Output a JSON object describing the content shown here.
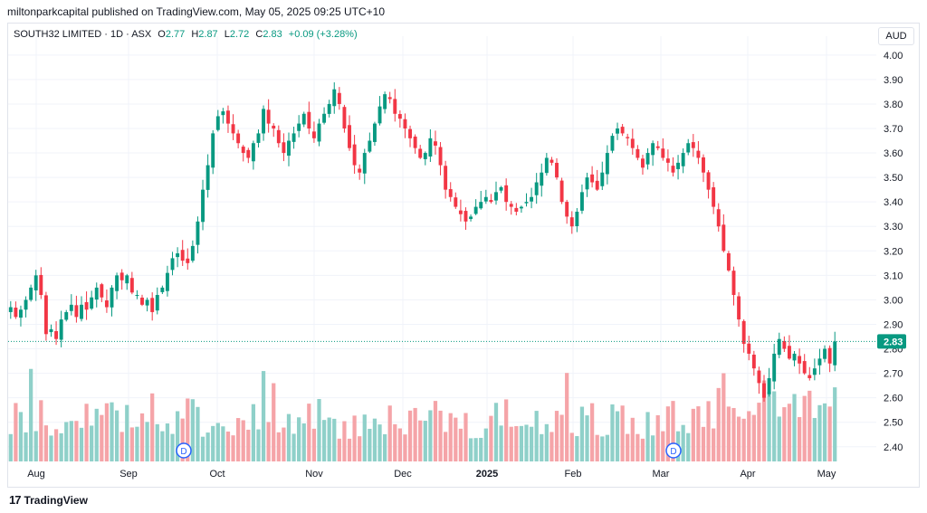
{
  "header": {
    "published": "miltonparkcapital published on TradingView.com, May 05, 2025 09:25 UTC+10"
  },
  "legend": {
    "symbol": "SOUTH32 LIMITED · 1D · ASX",
    "o_label": "O",
    "o_value": "2.77",
    "h_label": "H",
    "h_value": "2.87",
    "l_label": "L",
    "l_value": "2.72",
    "c_label": "C",
    "c_value": "2.83",
    "change": "+0.09 (+3.28%)"
  },
  "currency": "AUD",
  "last_price": "2.83",
  "footer": {
    "brand": "TradingView",
    "logo": "17"
  },
  "colors": {
    "up": "#089981",
    "down": "#f23645",
    "vol_up": "#8fd0c9",
    "vol_down": "#f5a4a8",
    "marker": "#2962ff"
  },
  "chart_data": {
    "type": "candlestick",
    "y_ticks": [
      "4.00",
      "3.90",
      "3.80",
      "3.70",
      "3.60",
      "3.50",
      "3.40",
      "3.30",
      "3.20",
      "3.10",
      "3.00",
      "2.90",
      "2.80",
      "2.70",
      "2.60",
      "2.50",
      "2.40"
    ],
    "x_ticks": [
      "Aug",
      "Sep",
      "Oct",
      "Nov",
      "Dec",
      "2025",
      "Feb",
      "Mar",
      "Apr",
      "May"
    ],
    "ylim": [
      2.34,
      4.04
    ],
    "dividend_markers": [
      {
        "label": "D",
        "near": "Sep"
      },
      {
        "label": "D",
        "near": "Mar"
      }
    ],
    "closes": [
      2.97,
      2.93,
      2.96,
      3.0,
      3.05,
      3.1,
      3.02,
      2.86,
      2.88,
      2.84,
      2.92,
      2.95,
      2.98,
      2.93,
      2.98,
      2.96,
      3.01,
      3.05,
      3.01,
      2.97,
      3.05,
      3.1,
      3.08,
      3.1,
      3.03,
      3.02,
      2.98,
      3.0,
      2.95,
      3.02,
      3.05,
      3.11,
      3.17,
      3.19,
      3.16,
      3.15,
      3.22,
      3.32,
      3.45,
      3.55,
      3.68,
      3.75,
      3.77,
      3.72,
      3.68,
      3.64,
      3.6,
      3.58,
      3.64,
      3.68,
      3.78,
      3.72,
      3.7,
      3.64,
      3.6,
      3.65,
      3.68,
      3.72,
      3.76,
      3.7,
      3.66,
      3.72,
      3.76,
      3.8,
      3.86,
      3.8,
      3.7,
      3.62,
      3.55,
      3.52,
      3.6,
      3.65,
      3.72,
      3.79,
      3.84,
      3.82,
      3.76,
      3.74,
      3.7,
      3.66,
      3.62,
      3.58,
      3.6,
      3.66,
      3.63,
      3.55,
      3.45,
      3.42,
      3.38,
      3.35,
      3.32,
      3.34,
      3.38,
      3.4,
      3.42,
      3.4,
      3.44,
      3.46,
      3.4,
      3.38,
      3.36,
      3.38,
      3.4,
      3.42,
      3.48,
      3.52,
      3.58,
      3.56,
      3.5,
      3.4,
      3.34,
      3.3,
      3.36,
      3.44,
      3.5,
      3.48,
      3.45,
      3.52,
      3.6,
      3.67,
      3.7,
      3.68,
      3.66,
      3.62,
      3.58,
      3.54,
      3.6,
      3.64,
      3.62,
      3.58,
      3.56,
      3.52,
      3.56,
      3.6,
      3.64,
      3.62,
      3.58,
      3.52,
      3.45,
      3.38,
      3.3,
      3.2,
      3.12,
      3.02,
      2.92,
      2.82,
      2.78,
      2.72,
      2.66,
      2.6,
      2.68,
      2.78,
      2.84,
      2.8,
      2.76,
      2.78,
      2.74,
      2.7,
      2.68,
      2.72,
      2.76,
      2.8,
      2.74,
      2.83
    ]
  }
}
